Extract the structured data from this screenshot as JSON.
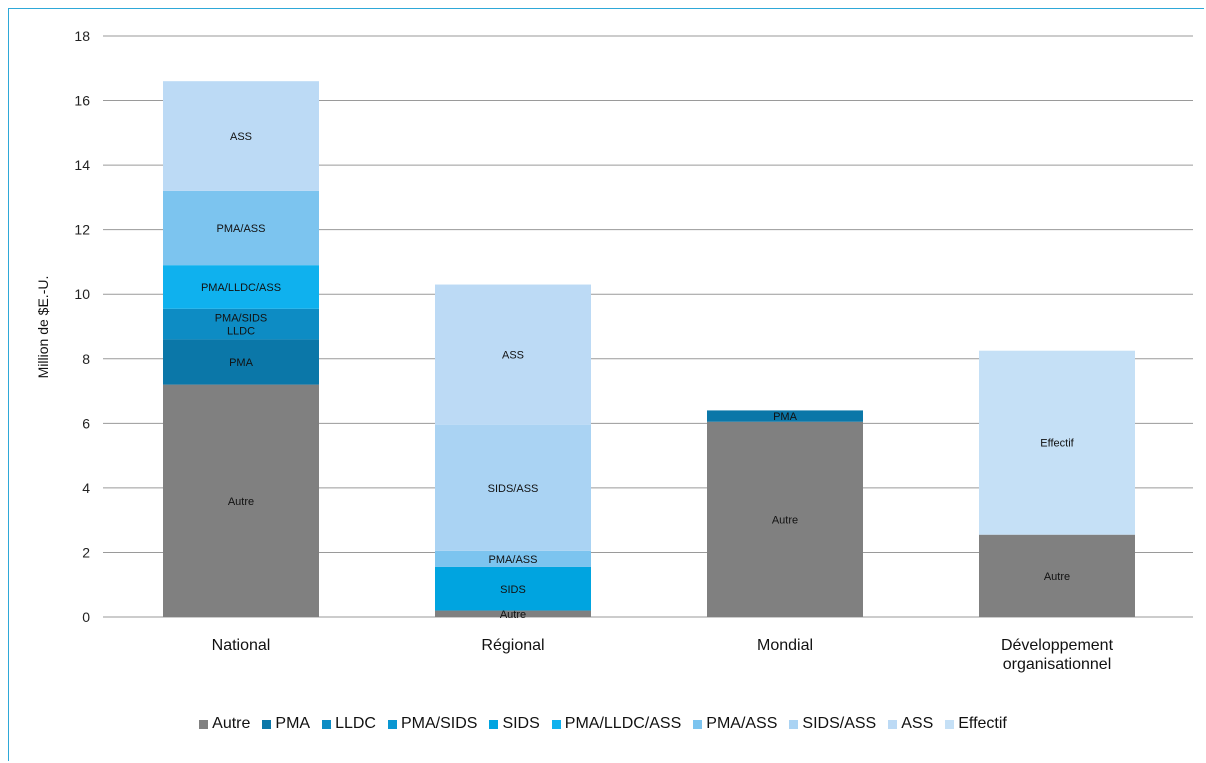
{
  "chart_data": {
    "type": "bar",
    "stacked": true,
    "title": "",
    "xlabel": "",
    "ylabel": "Million de $E.-U.",
    "ylim": [
      0,
      18
    ],
    "yticks": [
      0,
      2,
      4,
      6,
      8,
      10,
      12,
      14,
      16,
      18
    ],
    "grid": true,
    "legend_position": "bottom",
    "categories": [
      {
        "lines": [
          "National"
        ]
      },
      {
        "lines": [
          "Régional"
        ]
      },
      {
        "lines": [
          "Mondial"
        ]
      },
      {
        "lines": [
          "Développement",
          "organisationnel"
        ]
      }
    ],
    "series": [
      {
        "name": "Autre",
        "color": "#808080",
        "values": [
          7.2,
          0.2,
          6.05,
          2.55
        ],
        "labels": [
          [
            "Autre"
          ],
          [
            "Autre"
          ],
          [
            "Autre"
          ],
          [
            "Autre"
          ]
        ]
      },
      {
        "name": "PMA",
        "color": "#0b77a8",
        "values": [
          1.4,
          0,
          0.35,
          0
        ],
        "labels": [
          [
            "PMA"
          ],
          null,
          [
            "PMA"
          ],
          null
        ]
      },
      {
        "name": "LLDC",
        "color": "#0d8cc4",
        "values": [
          0.95,
          0,
          0,
          0
        ],
        "labels": [
          [
            "PMA/SIDS",
            "LLDC"
          ],
          null,
          null,
          null
        ]
      },
      {
        "name": "PMA/SIDS",
        "color": "#0a97d2",
        "values": [
          0,
          0,
          0,
          0
        ],
        "labels": [
          null,
          null,
          null,
          null
        ]
      },
      {
        "name": "SIDS",
        "color": "#00a4e0",
        "values": [
          0,
          1.35,
          0,
          0
        ],
        "labels": [
          null,
          [
            "SIDS"
          ],
          null,
          null
        ]
      },
      {
        "name": "PMA/LLDC/ASS",
        "color": "#0fb1ee",
        "values": [
          1.35,
          0,
          0,
          0
        ],
        "labels": [
          [
            "PMA/LLDC/ASS"
          ],
          null,
          null,
          null
        ]
      },
      {
        "name": "PMA/ASS",
        "color": "#7cc4ef",
        "values": [
          2.3,
          0.5,
          0,
          0
        ],
        "labels": [
          [
            "PMA/ASS"
          ],
          [
            "PMA/ASS"
          ],
          null,
          null
        ]
      },
      {
        "name": "SIDS/ASS",
        "color": "#aad3f3",
        "values": [
          0,
          3.9,
          0,
          0
        ],
        "labels": [
          null,
          [
            "SIDS/ASS"
          ],
          null,
          null
        ]
      },
      {
        "name": "ASS",
        "color": "#bcdaf5",
        "values": [
          3.4,
          4.35,
          0,
          0
        ],
        "labels": [
          [
            "ASS"
          ],
          [
            "ASS"
          ],
          null,
          null
        ]
      },
      {
        "name": "Effectif",
        "color": "#c5e0f6",
        "values": [
          0,
          0,
          0,
          5.7
        ],
        "labels": [
          null,
          null,
          null,
          [
            "Effectif"
          ]
        ]
      }
    ]
  }
}
